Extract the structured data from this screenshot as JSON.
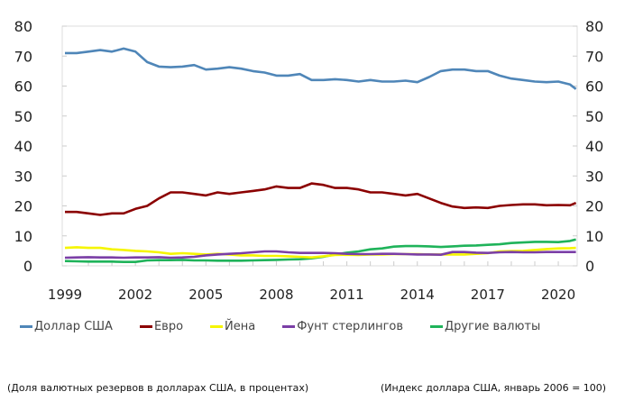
{
  "chart_data": {
    "type": "line",
    "title": "",
    "xlabel": "",
    "ylabel_left": "(Доля валютных резервов в долларах США, в процентах)",
    "ylabel_right": "(Индекс доллара США, январь 2006 = 100)",
    "ylim": [
      0,
      80
    ],
    "xlim": [
      1999,
      2020.75
    ],
    "yticks": [
      0,
      10,
      20,
      30,
      40,
      50,
      60,
      70,
      80
    ],
    "xticks": [
      "1999",
      "2002",
      "2005",
      "2008",
      "2011",
      "2014",
      "2017",
      "2020"
    ],
    "legend_position": "bottom",
    "x": [
      1999,
      1999.5,
      2000,
      2000.5,
      2001,
      2001.5,
      2002,
      2002.5,
      2003,
      2003.5,
      2004,
      2004.5,
      2005,
      2005.5,
      2006,
      2006.5,
      2007,
      2007.5,
      2008,
      2008.5,
      2009,
      2009.5,
      2010,
      2010.5,
      2011,
      2011.5,
      2012,
      2012.5,
      2013,
      2013.5,
      2014,
      2014.5,
      2015,
      2015.5,
      2016,
      2016.5,
      2017,
      2017.5,
      2018,
      2018.5,
      2019,
      2019.5,
      2020,
      2020.5,
      2020.75
    ],
    "series": [
      {
        "name": "Доллар США",
        "color": "#4f86b8",
        "values": [
          71,
          71,
          71.5,
          72,
          71.5,
          72.5,
          71.5,
          68,
          66.5,
          66.3,
          66.5,
          67,
          65.5,
          65.8,
          66.3,
          65.8,
          65,
          64.5,
          63.5,
          63.5,
          64,
          62,
          62,
          62.3,
          62,
          61.5,
          62,
          61.5,
          61.5,
          61.8,
          61.3,
          63,
          65,
          65.5,
          65.5,
          65,
          65,
          63.5,
          62.5,
          62,
          61.5,
          61.3,
          61.5,
          60.5,
          59
        ]
      },
      {
        "name": "Евро",
        "color": "#8b0000",
        "values": [
          18,
          18,
          17.5,
          17,
          17.5,
          17.5,
          19,
          20,
          22.5,
          24.5,
          24.5,
          24,
          23.5,
          24.5,
          24,
          24.5,
          25,
          25.5,
          26.5,
          26,
          26,
          27.5,
          27,
          26,
          26,
          25.5,
          24.5,
          24.5,
          24,
          23.5,
          24,
          22.5,
          21,
          19.8,
          19.3,
          19.5,
          19.3,
          20,
          20.3,
          20.5,
          20.5,
          20.2,
          20.3,
          20.2,
          21
        ]
      },
      {
        "name": "Йена",
        "color": "#f5f500",
        "values": [
          6,
          6.2,
          6,
          6,
          5.5,
          5.3,
          5,
          4.8,
          4.5,
          4,
          4.2,
          4,
          3.8,
          4,
          3.8,
          3.5,
          3.5,
          3.3,
          3.3,
          3.2,
          3,
          2.8,
          3.2,
          3.6,
          3.7,
          3.6,
          3.8,
          3.8,
          3.9,
          3.9,
          3.9,
          3.8,
          3.8,
          3.8,
          3.8,
          4,
          4.2,
          4.8,
          4.9,
          5,
          5.3,
          5.6,
          5.8,
          5.9,
          6
        ]
      },
      {
        "name": "Фунт стерлингов",
        "color": "#7b3fa6",
        "values": [
          2.7,
          2.8,
          2.9,
          2.8,
          2.8,
          2.7,
          2.8,
          2.8,
          2.9,
          2.7,
          2.8,
          3,
          3.5,
          3.8,
          4,
          4.2,
          4.5,
          4.8,
          4.8,
          4.5,
          4.3,
          4.3,
          4.3,
          4.2,
          4,
          3.9,
          3.9,
          4,
          4,
          3.9,
          3.8,
          3.8,
          3.7,
          4.6,
          4.6,
          4.4,
          4.3,
          4.5,
          4.6,
          4.5,
          4.5,
          4.6,
          4.6,
          4.6,
          4.6
        ]
      },
      {
        "name": "Другие валюты",
        "color": "#1fb35a",
        "values": [
          1.6,
          1.5,
          1.4,
          1.4,
          1.4,
          1.3,
          1.3,
          1.8,
          1.9,
          1.9,
          2,
          1.8,
          1.8,
          1.7,
          1.7,
          1.7,
          1.8,
          1.9,
          2,
          2.1,
          2.2,
          2.5,
          3,
          3.8,
          4.4,
          4.8,
          5.5,
          5.8,
          6.4,
          6.6,
          6.6,
          6.5,
          6.3,
          6.5,
          6.7,
          6.8,
          7,
          7.2,
          7.6,
          7.8,
          8,
          8,
          7.9,
          8.3,
          8.8
        ]
      }
    ]
  }
}
